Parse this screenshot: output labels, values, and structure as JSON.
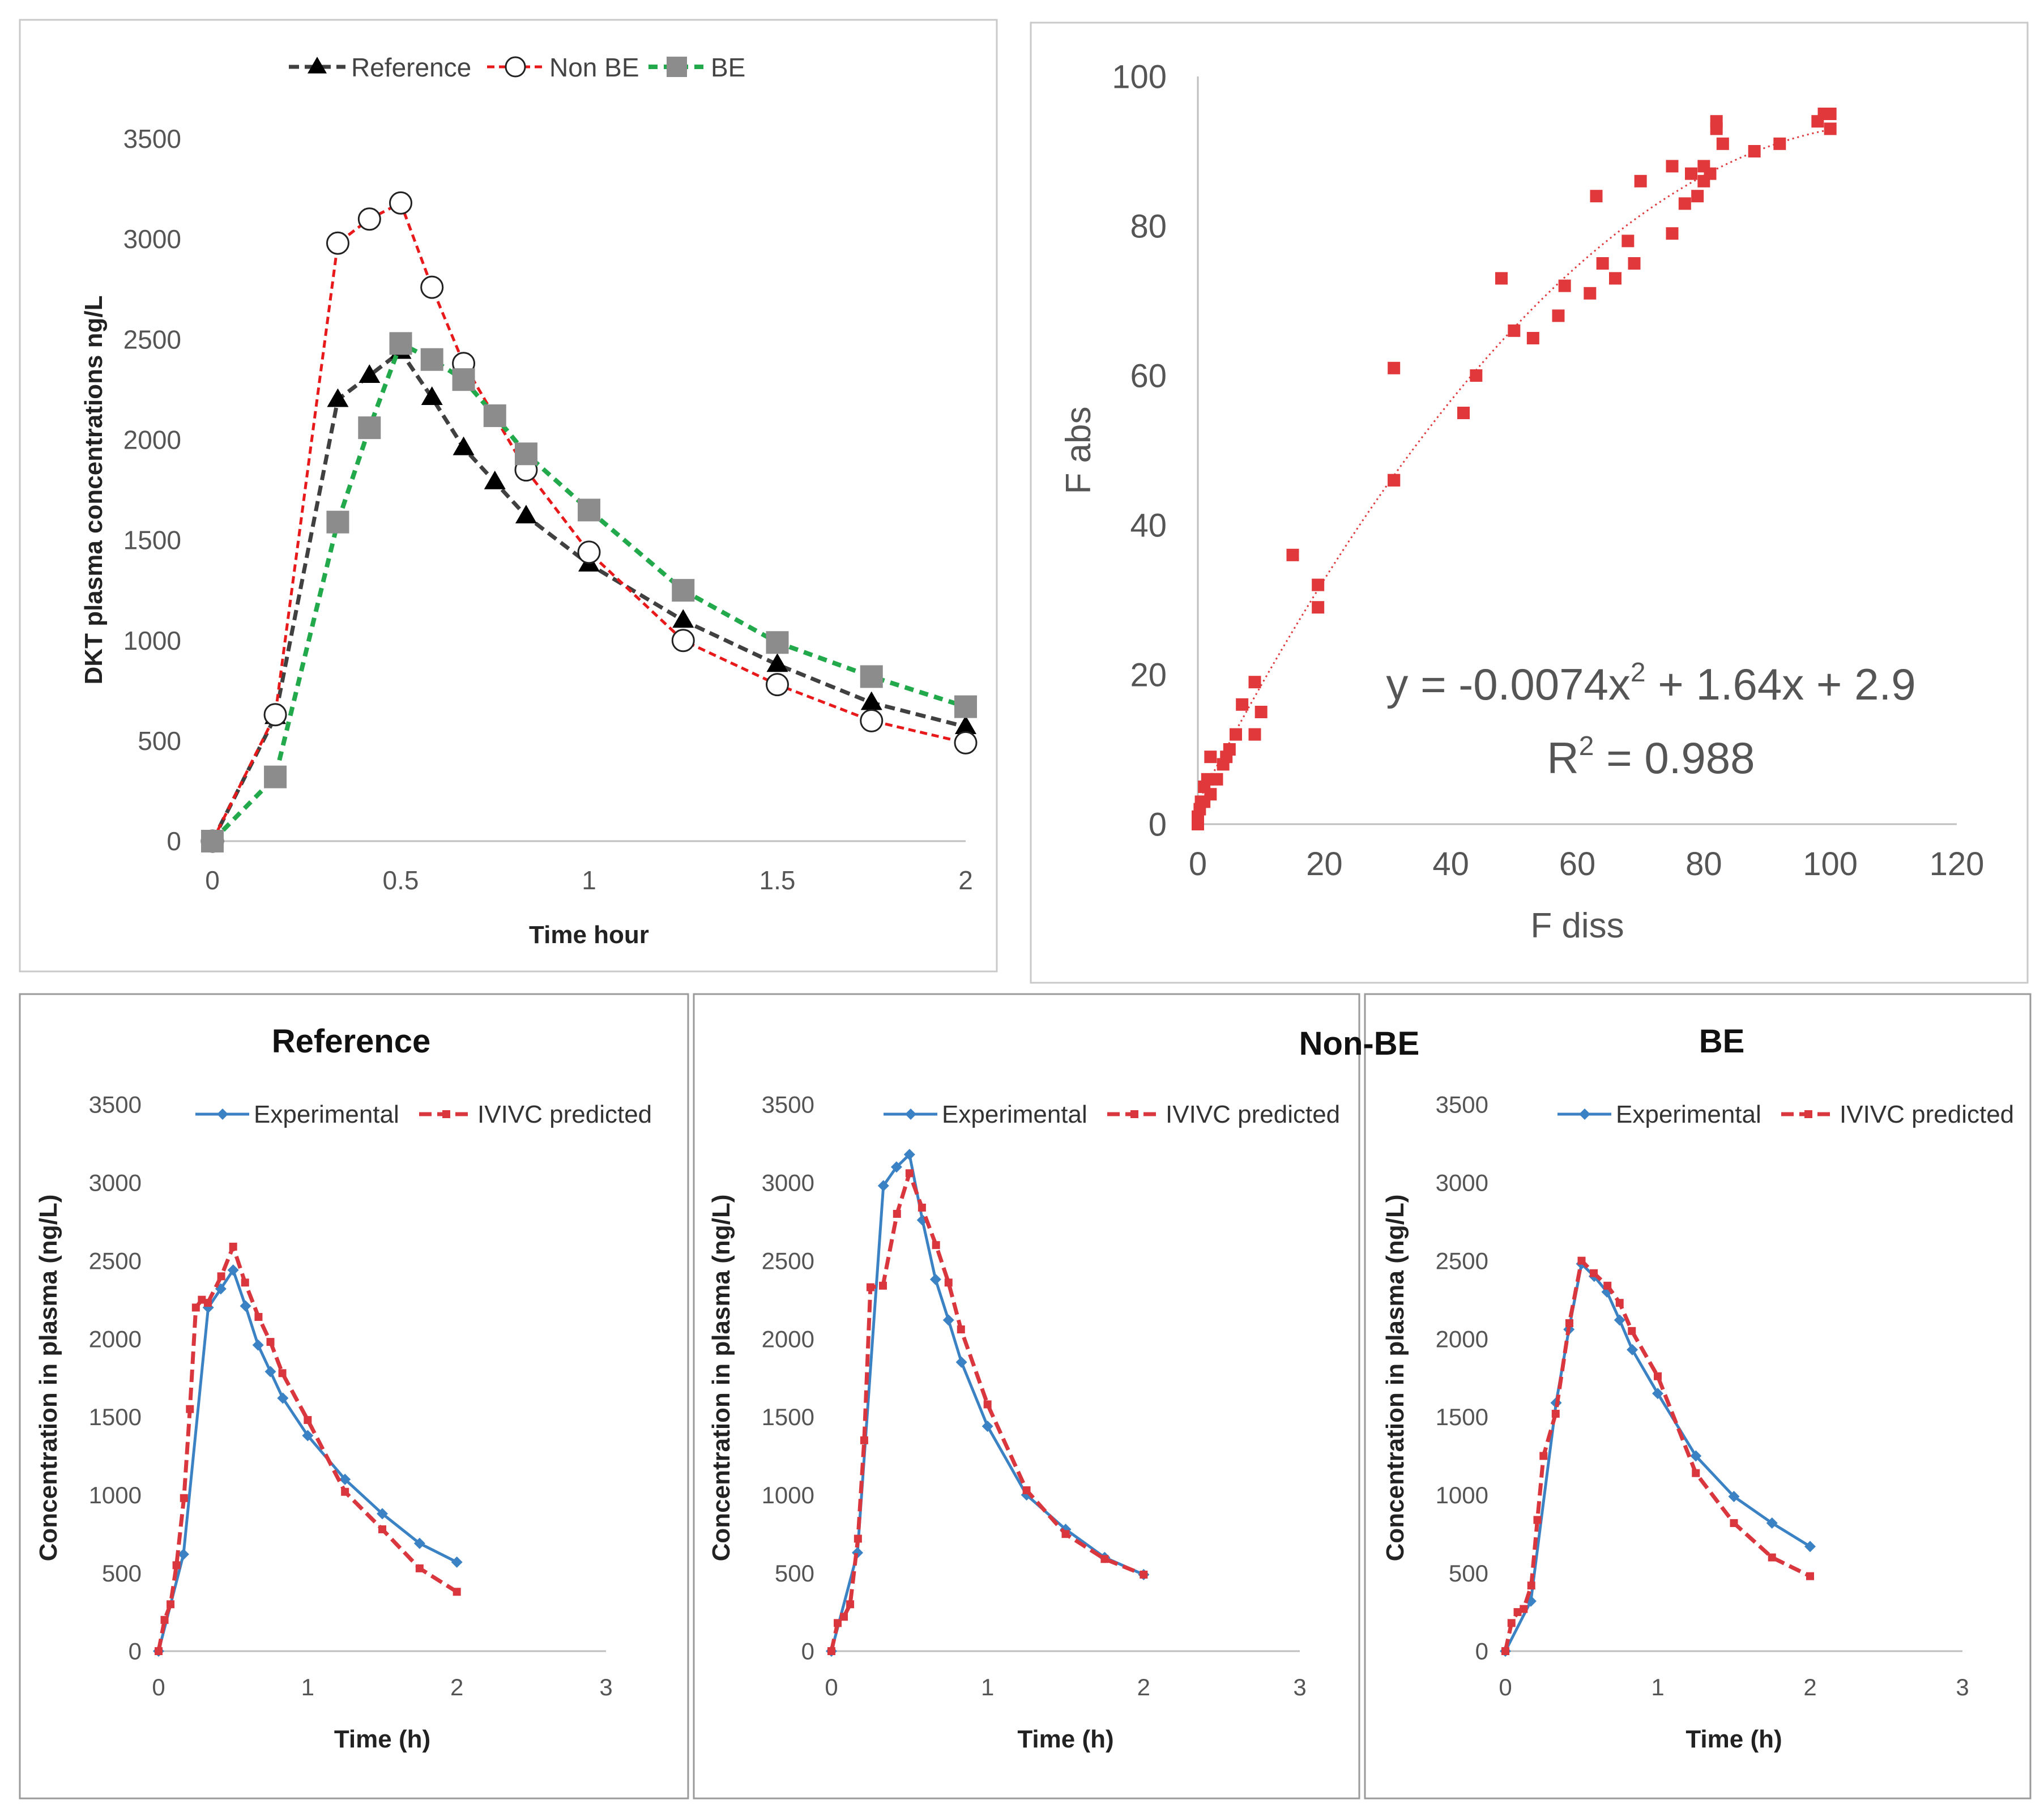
{
  "colors": {
    "reference": "#404040",
    "non_be": "#e8191b",
    "be": "#22a94b",
    "be_marker": "#8c8c8c",
    "experimental": "#3b82c4",
    "ivivc": "#d9363e",
    "scatter": "#e0383b",
    "frame": "#bfbfbf",
    "axis": "#bfbfbf",
    "text": "#555555",
    "bold_text": "#111111"
  },
  "chart_data": [
    {
      "id": "pk",
      "type": "line",
      "title": "",
      "xlabel": "Time hour",
      "ylabel": "DKT plasma concentrations ng/L",
      "xlim": [
        0,
        2
      ],
      "ylim": [
        0,
        3500
      ],
      "xticks": [
        0,
        0.5,
        1,
        1.5,
        2
      ],
      "xtick_labels": [
        "0",
        "0.5",
        "1",
        "1.5",
        "2"
      ],
      "yticks": [
        0,
        500,
        1000,
        1500,
        2000,
        2500,
        3000,
        3500
      ],
      "ytick_labels": [
        "0",
        "500",
        "1000",
        "1500",
        "2000",
        "2500",
        "3000",
        "3500"
      ],
      "legend": "top",
      "series": [
        {
          "name": "Reference",
          "color": "reference",
          "marker": "triangle",
          "x": [
            0,
            0.167,
            0.333,
            0.417,
            0.5,
            0.583,
            0.667,
            0.75,
            0.833,
            1,
            1.25,
            1.5,
            1.75,
            2
          ],
          "y": [
            0,
            620,
            2200,
            2320,
            2440,
            2210,
            1960,
            1790,
            1620,
            1380,
            1100,
            880,
            690,
            570
          ]
        },
        {
          "name": "Non BE",
          "color": "non_be",
          "marker": "circle",
          "x": [
            0,
            0.167,
            0.333,
            0.417,
            0.5,
            0.583,
            0.667,
            0.833,
            1,
            1.25,
            1.5,
            1.75,
            2
          ],
          "y": [
            0,
            630,
            2980,
            3100,
            3180,
            2760,
            2380,
            1850,
            1440,
            1000,
            780,
            600,
            490
          ]
        },
        {
          "name": "BE",
          "color": "be",
          "marker": "square",
          "x": [
            0,
            0.167,
            0.333,
            0.417,
            0.5,
            0.583,
            0.667,
            0.75,
            0.833,
            1,
            1.25,
            1.5,
            1.75,
            2
          ],
          "y": [
            0,
            320,
            1590,
            2060,
            2480,
            2400,
            2300,
            2120,
            1930,
            1650,
            1250,
            990,
            820,
            670
          ]
        }
      ]
    },
    {
      "id": "ivivc",
      "type": "scatter",
      "xlabel": "F diss",
      "ylabel": "F abs",
      "xlim": [
        0,
        120
      ],
      "ylim": [
        0,
        100
      ],
      "xticks": [
        0,
        20,
        40,
        60,
        80,
        100,
        120
      ],
      "xtick_labels": [
        "0",
        "20",
        "40",
        "60",
        "80",
        "100",
        "120"
      ],
      "yticks": [
        0,
        20,
        40,
        60,
        80,
        100
      ],
      "ytick_labels": [
        "0",
        "20",
        "40",
        "60",
        "80",
        "100"
      ],
      "trendline": {
        "a": -0.0074,
        "b": 1.64,
        "c": 2.9,
        "x_range": [
          0,
          100
        ]
      },
      "equation": "y = -0.0074x",
      "equation_exp": "2",
      "equation_rest": " + 1.64x + 2.9",
      "r2_label": "R",
      "r2_exp": "2",
      "r2_rest": " = 0.988",
      "points": [
        [
          0,
          0
        ],
        [
          0,
          1
        ],
        [
          0.3,
          2
        ],
        [
          0.5,
          3
        ],
        [
          1,
          3
        ],
        [
          1,
          5
        ],
        [
          1.5,
          6
        ],
        [
          2,
          4
        ],
        [
          2,
          9
        ],
        [
          3,
          6
        ],
        [
          4,
          8
        ],
        [
          4.5,
          9
        ],
        [
          5,
          10
        ],
        [
          6,
          12
        ],
        [
          7,
          16
        ],
        [
          9,
          12
        ],
        [
          9,
          19
        ],
        [
          10,
          15
        ],
        [
          15,
          36
        ],
        [
          19,
          29
        ],
        [
          19,
          32
        ],
        [
          31,
          61
        ],
        [
          31,
          46
        ],
        [
          31,
          46
        ],
        [
          42,
          55
        ],
        [
          44,
          60
        ],
        [
          48,
          73
        ],
        [
          50,
          66
        ],
        [
          53,
          65
        ],
        [
          57,
          68
        ],
        [
          58,
          72
        ],
        [
          62,
          71
        ],
        [
          63,
          84
        ],
        [
          64,
          75
        ],
        [
          66,
          73
        ],
        [
          68,
          78
        ],
        [
          69,
          75
        ],
        [
          70,
          86
        ],
        [
          75,
          79
        ],
        [
          75,
          88
        ],
        [
          77,
          83
        ],
        [
          78,
          87
        ],
        [
          79,
          84
        ],
        [
          80,
          88
        ],
        [
          80,
          86
        ],
        [
          81,
          87
        ],
        [
          82,
          94
        ],
        [
          82,
          93
        ],
        [
          83,
          91
        ],
        [
          88,
          90
        ],
        [
          92,
          91
        ],
        [
          98,
          94
        ],
        [
          99,
          95
        ],
        [
          100,
          93
        ],
        [
          100,
          95
        ]
      ]
    },
    {
      "id": "reference_ivivc",
      "type": "line",
      "title": "Reference",
      "xlabel": "Time (h)",
      "ylabel": "Concentration in plasma (ng/L)",
      "xlim": [
        0,
        3
      ],
      "ylim": [
        0,
        3500
      ],
      "xticks": [
        0,
        1,
        2,
        3
      ],
      "xtick_labels": [
        "0",
        "1",
        "2",
        "3"
      ],
      "yticks": [
        0,
        500,
        1000,
        1500,
        2000,
        2500,
        3000,
        3500
      ],
      "ytick_labels": [
        "0",
        "500",
        "1000",
        "1500",
        "2000",
        "2500",
        "3000",
        "3500"
      ],
      "legend": "top",
      "series": [
        {
          "name": "Experimental",
          "color": "experimental",
          "style": "solid",
          "x": [
            0,
            0.167,
            0.333,
            0.417,
            0.5,
            0.583,
            0.667,
            0.75,
            0.833,
            1,
            1.25,
            1.5,
            1.75,
            2
          ],
          "y": [
            0,
            620,
            2200,
            2320,
            2440,
            2210,
            1960,
            1790,
            1620,
            1380,
            1100,
            880,
            690,
            570
          ]
        },
        {
          "name": "IVIVC predicted",
          "color": "ivivc",
          "style": "dashed",
          "x": [
            0,
            0.04,
            0.08,
            0.12,
            0.17,
            0.21,
            0.25,
            0.29,
            0.33,
            0.42,
            0.5,
            0.58,
            0.67,
            0.75,
            0.83,
            1,
            1.25,
            1.5,
            1.75,
            2
          ],
          "y": [
            0,
            200,
            300,
            550,
            980,
            1550,
            2200,
            2250,
            2230,
            2400,
            2590,
            2360,
            2140,
            1980,
            1780,
            1480,
            1020,
            780,
            530,
            380
          ]
        }
      ]
    },
    {
      "id": "nonbe_ivivc",
      "type": "line",
      "title": "Non-BE",
      "xlabel": "Time (h)",
      "ylabel": "Concentration in plasma (ng/L)",
      "xlim": [
        0,
        3
      ],
      "ylim": [
        0,
        3500
      ],
      "xticks": [
        0,
        1,
        2,
        3
      ],
      "xtick_labels": [
        "0",
        "1",
        "2",
        "3"
      ],
      "yticks": [
        0,
        500,
        1000,
        1500,
        2000,
        2500,
        3000,
        3500
      ],
      "ytick_labels": [
        "0",
        "500",
        "1000",
        "1500",
        "2000",
        "2500",
        "3000",
        "3500"
      ],
      "legend": "top",
      "series": [
        {
          "name": "Experimental",
          "color": "experimental",
          "style": "solid",
          "x": [
            0,
            0.167,
            0.333,
            0.417,
            0.5,
            0.583,
            0.667,
            0.75,
            0.833,
            1,
            1.25,
            1.5,
            1.75,
            2
          ],
          "y": [
            0,
            630,
            2980,
            3100,
            3180,
            2760,
            2380,
            2120,
            1850,
            1440,
            1000,
            780,
            600,
            490
          ]
        },
        {
          "name": "IVIVC predicted",
          "color": "ivivc",
          "style": "dashed",
          "x": [
            0,
            0.04,
            0.08,
            0.12,
            0.17,
            0.21,
            0.25,
            0.33,
            0.42,
            0.5,
            0.58,
            0.67,
            0.75,
            0.83,
            1,
            1.25,
            1.5,
            1.75,
            2
          ],
          "y": [
            0,
            180,
            220,
            300,
            720,
            1350,
            2330,
            2340,
            2800,
            3060,
            2840,
            2600,
            2360,
            2060,
            1580,
            1030,
            750,
            590,
            490
          ]
        }
      ]
    },
    {
      "id": "be_ivivc",
      "type": "line",
      "title": "BE",
      "xlabel": "Time (h)",
      "ylabel": "Concentration in plasma (ng/L)",
      "xlim": [
        0,
        3
      ],
      "ylim": [
        0,
        3500
      ],
      "xticks": [
        0,
        1,
        2,
        3
      ],
      "xtick_labels": [
        "0",
        "1",
        "2",
        "3"
      ],
      "yticks": [
        0,
        500,
        1000,
        1500,
        2000,
        2500,
        3000,
        3500
      ],
      "ytick_labels": [
        "0",
        "500",
        "1000",
        "1500",
        "2000",
        "2500",
        "3000",
        "3500"
      ],
      "legend": "top",
      "series": [
        {
          "name": "Experimental",
          "color": "experimental",
          "style": "solid",
          "x": [
            0,
            0.167,
            0.333,
            0.417,
            0.5,
            0.583,
            0.667,
            0.75,
            0.833,
            1,
            1.25,
            1.5,
            1.75,
            2
          ],
          "y": [
            0,
            320,
            1590,
            2060,
            2480,
            2400,
            2300,
            2120,
            1930,
            1650,
            1250,
            990,
            820,
            670
          ]
        },
        {
          "name": "IVIVC predicted",
          "color": "ivivc",
          "style": "dashed",
          "x": [
            0,
            0.04,
            0.08,
            0.12,
            0.17,
            0.21,
            0.25,
            0.33,
            0.42,
            0.5,
            0.58,
            0.67,
            0.75,
            0.83,
            1,
            1.25,
            1.5,
            1.75,
            2
          ],
          "y": [
            0,
            180,
            250,
            270,
            420,
            840,
            1250,
            1520,
            2100,
            2500,
            2420,
            2340,
            2230,
            2050,
            1760,
            1140,
            820,
            600,
            480
          ]
        }
      ]
    }
  ]
}
